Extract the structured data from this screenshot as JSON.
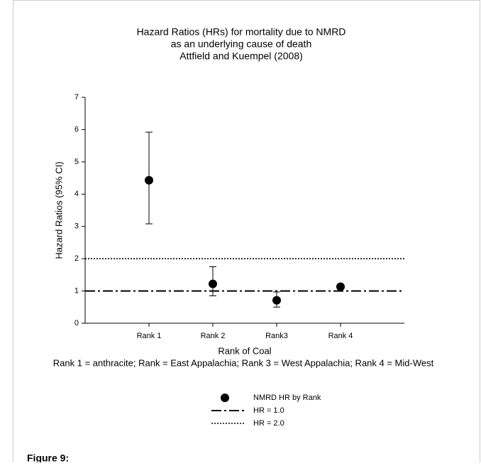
{
  "caption": "Figure 9:",
  "chart_data": {
    "type": "errorbar",
    "title_lines": [
      "Hazard Ratios (HRs) for mortality due to NMRD",
      "as an underlying cause of death",
      "Attfield and Kuempel (2008)"
    ],
    "x_label": "Rank of Coal",
    "note": "Rank 1 = anthracite; Rank = East Appalachia; Rank 3 = West Appalachia; Rank 4 = Mid-West",
    "y_label": "Hazard Ratios (95% CI)",
    "categories": [
      "Rank 1",
      "Rank 2",
      "Rank3",
      "Rank 4"
    ],
    "series": [
      {
        "name": "NMRD HR by Rank",
        "color": "#000000",
        "values": [
          4.43,
          1.22,
          0.71,
          1.13
        ],
        "lower": [
          3.08,
          0.85,
          0.5,
          1.08
        ],
        "upper": [
          5.92,
          1.75,
          0.97,
          1.18
        ]
      }
    ],
    "reference_lines": [
      {
        "name": "HR = 1.0",
        "value": 1,
        "style": "dashdot"
      },
      {
        "name": "HR = 2.0",
        "value": 2,
        "style": "dotted"
      }
    ],
    "ylim": [
      0,
      7
    ],
    "yticks": [
      0,
      1,
      2,
      3,
      4,
      5,
      6,
      7
    ]
  }
}
